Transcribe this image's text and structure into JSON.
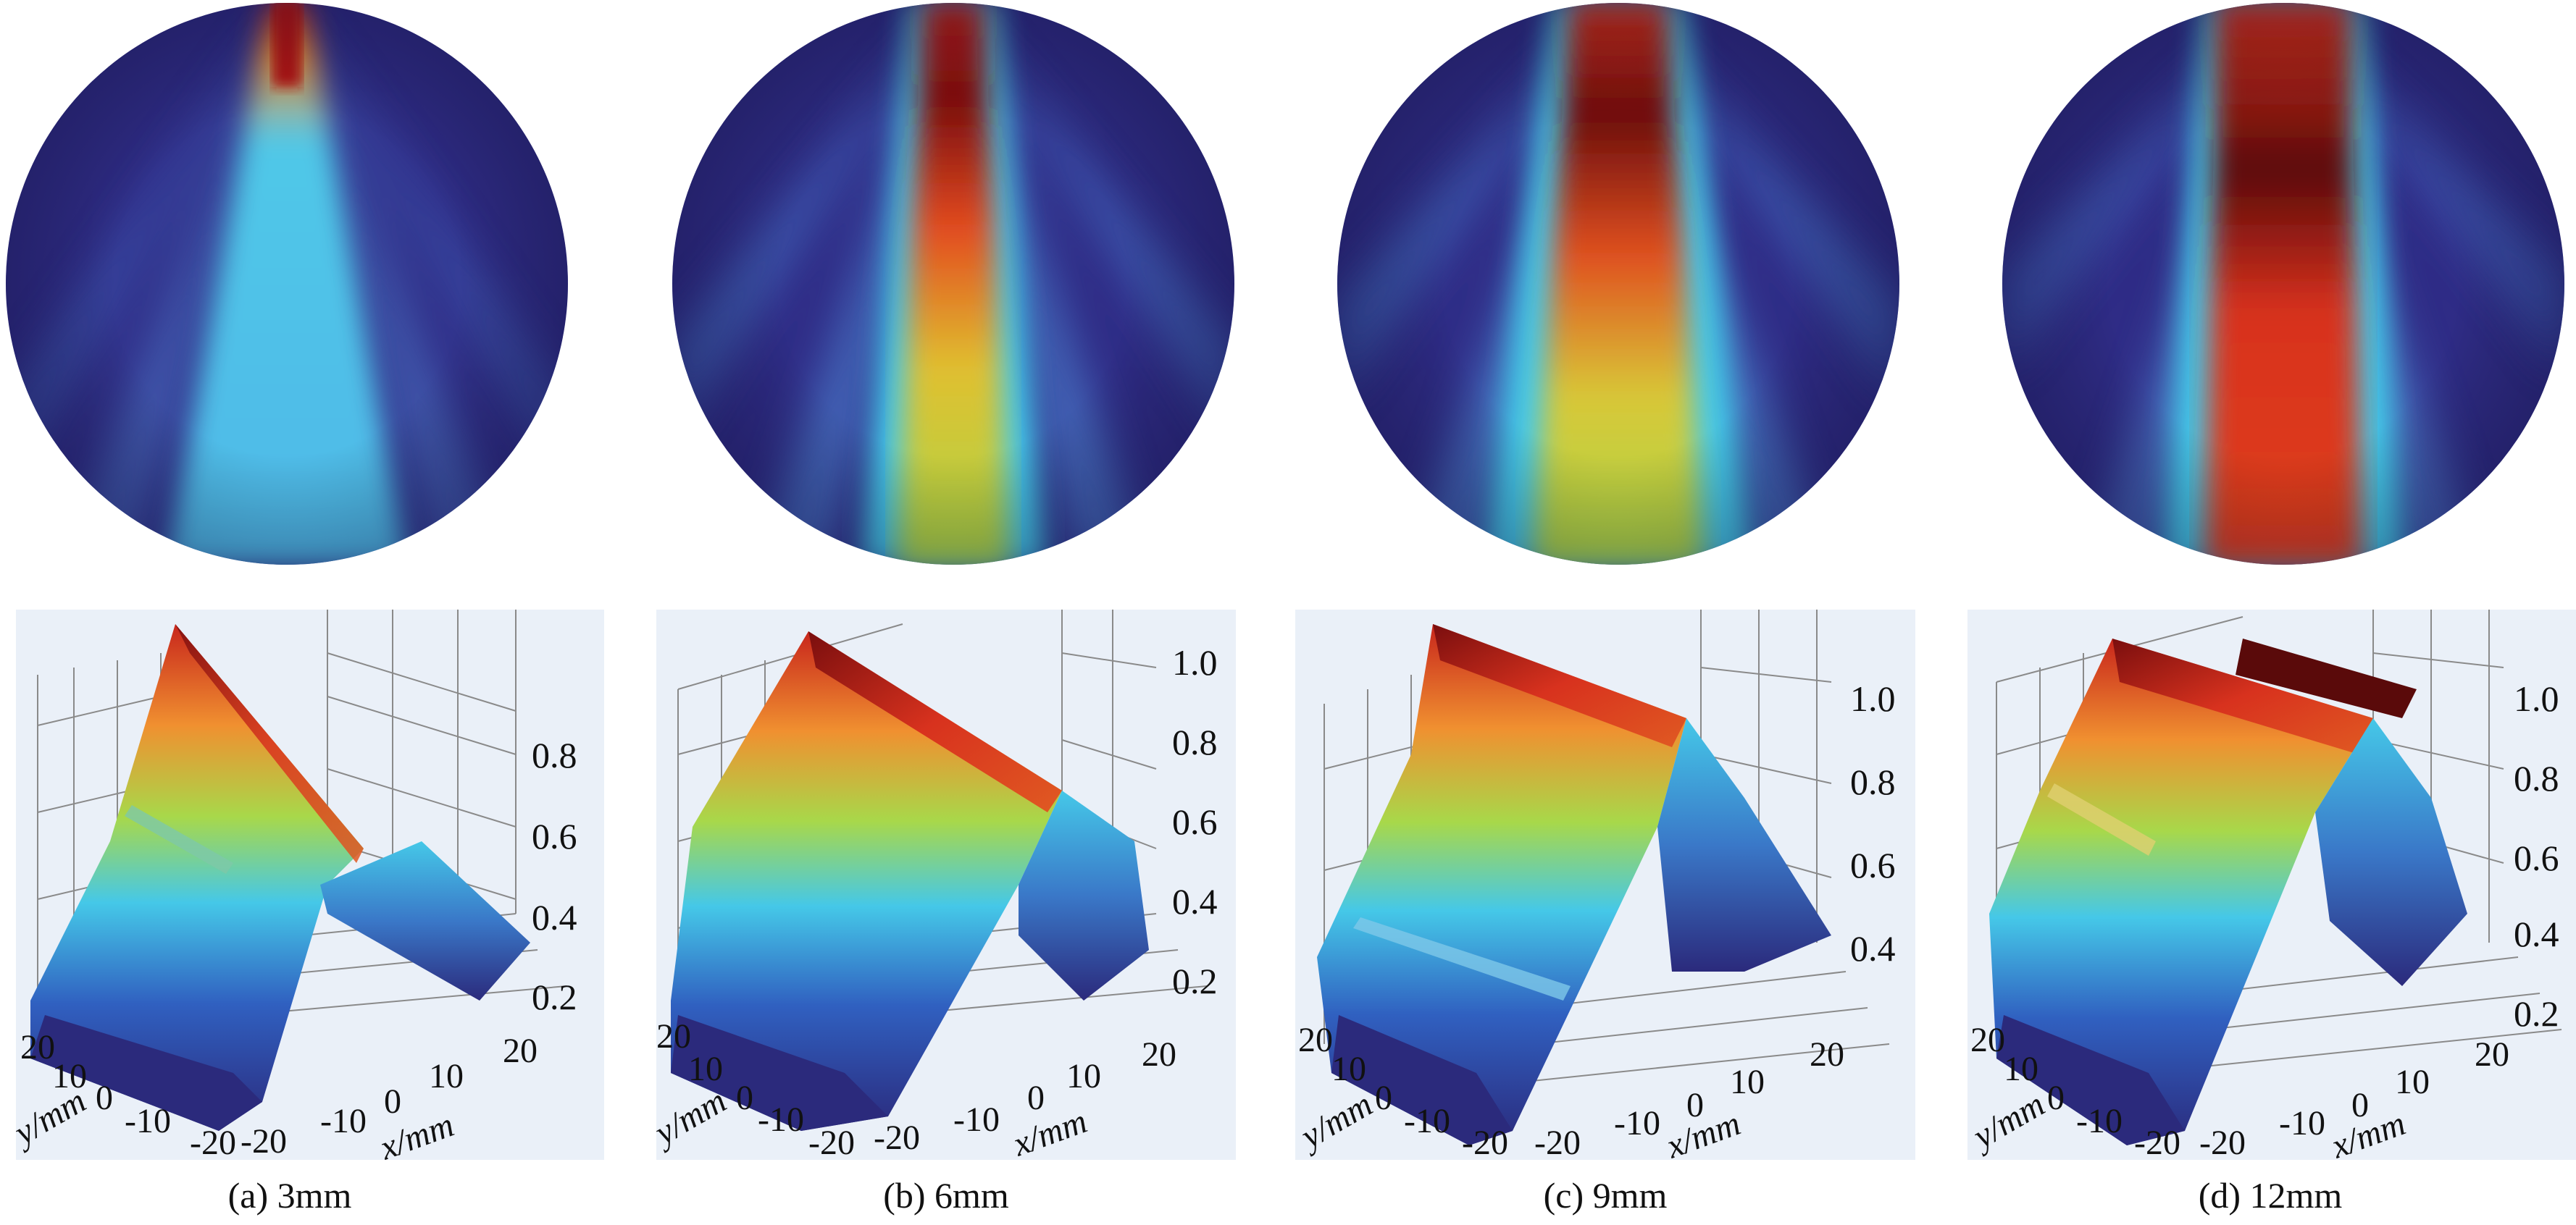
{
  "panels": [
    {
      "caption": "(a) 3mm",
      "z_ticks": [
        "0.8",
        "0.6",
        "0.4",
        "0.2"
      ],
      "y_ticks": [
        "20",
        "10",
        "0",
        "-10",
        "-20"
      ],
      "x_ticks": [
        "-20",
        "-10",
        "0",
        "10",
        "20"
      ],
      "y_label": "y/mm",
      "x_label": "x/mm"
    },
    {
      "caption": "(b) 6mm",
      "z_ticks": [
        "1.0",
        "0.8",
        "0.6",
        "0.4",
        "0.2"
      ],
      "y_ticks": [
        "20",
        "10",
        "0",
        "-10",
        "-20"
      ],
      "x_ticks": [
        "-20",
        "-10",
        "0",
        "10",
        "20"
      ],
      "y_label": "y/mm",
      "x_label": "x/mm"
    },
    {
      "caption": "(c) 9mm",
      "z_ticks": [
        "1.0",
        "0.8",
        "0.6",
        "0.4"
      ],
      "y_ticks": [
        "20",
        "10",
        "0",
        "-10",
        "-20"
      ],
      "x_ticks": [
        "-20",
        "-10",
        "0",
        "10",
        "20"
      ],
      "y_label": "y/mm",
      "x_label": "x/mm"
    },
    {
      "caption": "(d) 12mm",
      "z_ticks": [
        "1.0",
        "0.8",
        "0.6",
        "0.4",
        "0.2"
      ],
      "y_ticks": [
        "20",
        "10",
        "0",
        "-10",
        "-20"
      ],
      "x_ticks": [
        "-20",
        "-10",
        "0",
        "10",
        "20"
      ],
      "y_label": "y/mm",
      "x_label": "x/mm"
    }
  ],
  "colors": {
    "deep_blue": "#2b2a7c",
    "cyan": "#45c8e8",
    "yellow_green": "#a8d84a",
    "red": "#d8321e",
    "dark_red": "#5a0a0a",
    "plot_bg": "#eaf0f8"
  }
}
